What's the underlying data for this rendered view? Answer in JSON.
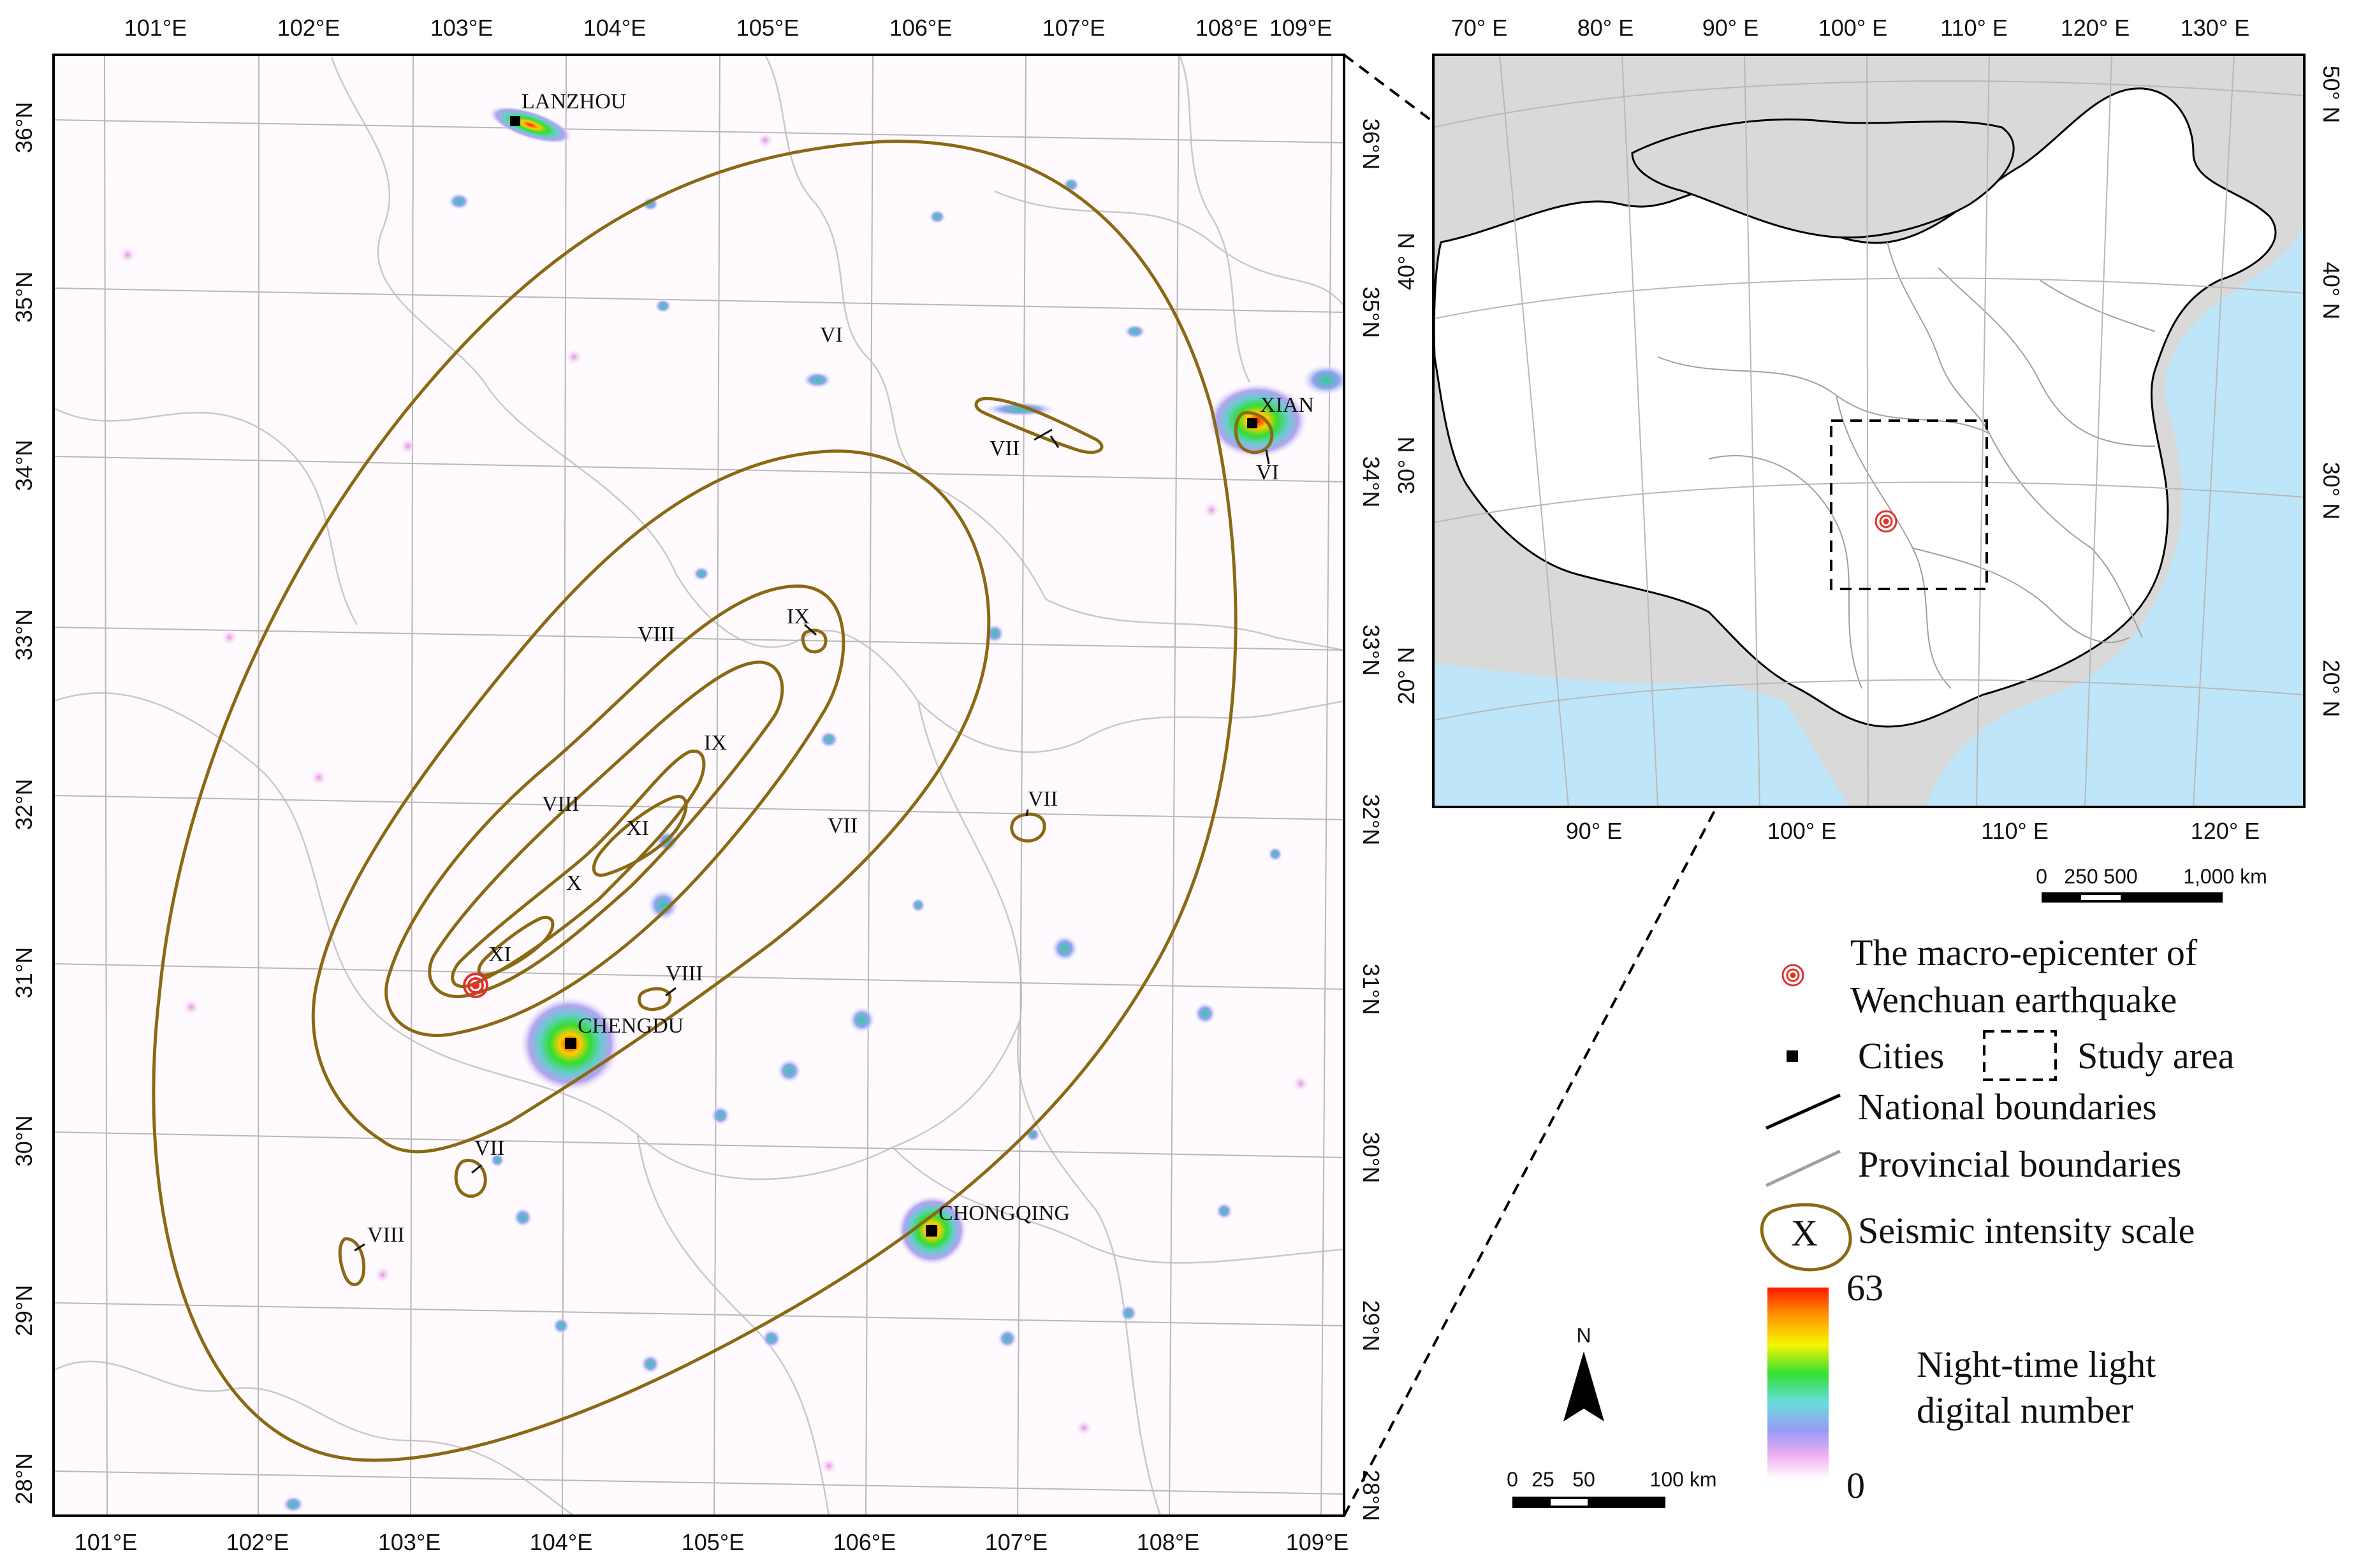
{
  "main_map": {
    "top_lon_ticks": [
      "101°E",
      "102°E",
      "103°E",
      "104°E",
      "105°E",
      "106°E",
      "107°E",
      "108°E",
      "109°E"
    ],
    "bottom_lon_ticks": [
      "101°E",
      "102°E",
      "103°E",
      "104°E",
      "105°E",
      "106°E",
      "107°E",
      "108°E",
      "109°E"
    ],
    "lat_ticks": [
      "36°N",
      "35°N",
      "34°N",
      "33°N",
      "32°N",
      "31°N",
      "30°N",
      "29°N",
      "28°N"
    ],
    "cities": [
      {
        "name": "LANZHOU"
      },
      {
        "name": "XIAN"
      },
      {
        "name": "CHENGDU"
      },
      {
        "name": "CHONGQING"
      }
    ],
    "intensity_labels": [
      "VI",
      "VI",
      "VII",
      "VII",
      "VII",
      "VII",
      "VIII",
      "VIII",
      "VIII",
      "VIII",
      "IX",
      "IX",
      "X",
      "XI",
      "XI"
    ],
    "scale_bar": {
      "labels": [
        "0",
        "25",
        "50",
        "100 km"
      ]
    },
    "north_arrow": "N"
  },
  "inset_map": {
    "top_lon_ticks": [
      "70° E",
      "80° E",
      "90° E",
      "100° E",
      "110° E",
      "120° E",
      "130° E"
    ],
    "bottom_lon_ticks": [
      "90° E",
      "100° E",
      "110° E",
      "120° E"
    ],
    "lat_ticks": [
      "50° N",
      "40° N",
      "30° N",
      "20° N"
    ],
    "scale_bar": {
      "labels": [
        "0",
        "250",
        "500",
        "1,000 km"
      ]
    }
  },
  "legend": {
    "epicenter_line1": "The macro-epicenter of",
    "epicenter_line2": "Wenchuan earthquake",
    "cities": "Cities",
    "study_area": "Study area",
    "national": "National boundaries",
    "provincial": "Provincial boundaries",
    "intensity_symbol": "X",
    "intensity": "Seismic intensity scale",
    "colorbar_max": "63",
    "colorbar_min": "0",
    "colorbar_title_line1": "Night-time light",
    "colorbar_title_line2": "digital number"
  },
  "colors": {
    "contour": "#8B6914",
    "sea": "#bfe6f8",
    "neighbor": "#d9d9d9",
    "epicenter": "#e0312e",
    "graticule": "#b8b8b8"
  }
}
